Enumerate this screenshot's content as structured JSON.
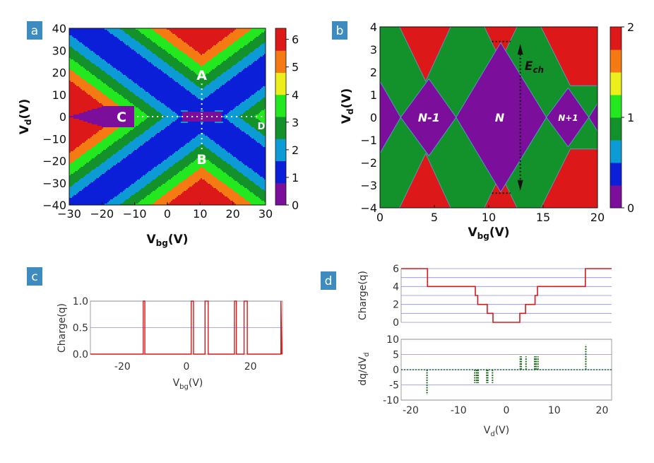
{
  "palette": [
    "#7b0f9c",
    "#0b1fd8",
    "#0d9bd6",
    "#13912a",
    "#23e81f",
    "#ecef1b",
    "#f57a14",
    "#dd1818"
  ],
  "panels": [
    {
      "id": "a",
      "badge": "a",
      "chart_data": {
        "type": "heatmap",
        "title": "",
        "xlabel": "V",
        "xlabel_sub": "bg",
        "xlabel_unit": "(V)",
        "ylabel": "V",
        "ylabel_sub": "d",
        "ylabel_unit": "(V)",
        "xlim": [
          -30,
          30
        ],
        "ylim": [
          -40,
          40
        ],
        "x_ticks": [
          "−30",
          "−20",
          "−10",
          "0",
          "10",
          "20",
          "30"
        ],
        "y_ticks": [
          "40",
          "30",
          "20",
          "10",
          "0",
          "−10",
          "−20",
          "−30",
          "−40"
        ],
        "colorbar": {
          "range": [
            0,
            6.4
          ],
          "ticks": [
            "0",
            "1",
            "2",
            "3",
            "4",
            "5",
            "6"
          ]
        },
        "levels": [
          0,
          1,
          2,
          3,
          4,
          5,
          6
        ],
        "points": {
          "A": {
            "label": "A",
            "x": 10.5,
            "y": 18
          },
          "B": {
            "label": "B",
            "x": 10.5,
            "y": -17
          },
          "C": {
            "label": "C",
            "x": -14,
            "y": 0
          },
          "D": {
            "label": "D",
            "x": 30,
            "y": 0
          }
        }
      }
    },
    {
      "id": "b",
      "badge": "b",
      "chart_data": {
        "type": "heatmap",
        "title": "",
        "xlabel": "V",
        "xlabel_sub": "bg",
        "xlabel_unit": "(V)",
        "ylabel": "V",
        "ylabel_sub": "d",
        "ylabel_unit": "(V)",
        "xlim": [
          0,
          20
        ],
        "ylim": [
          -4,
          4
        ],
        "x_ticks": [
          "0",
          "5",
          "10",
          "15",
          "20"
        ],
        "y_ticks": [
          "4",
          "3",
          "2",
          "1",
          "0",
          "−1",
          "−2",
          "−3",
          "−4"
        ],
        "colorbar": {
          "range": [
            0,
            2
          ],
          "ticks": [
            "0",
            "1",
            "2"
          ]
        },
        "degeneracy_points": [
          1.0,
          7.0,
          15.0
        ],
        "annotations": {
          "n_minus": "N-1",
          "n": "N",
          "n_plus": "N+1",
          "charging_energy": "E",
          "charging_energy_sub": "ch"
        }
      }
    },
    {
      "id": "c",
      "badge": "c",
      "chart_data": {
        "type": "line",
        "title": "",
        "xlabel": "V",
        "xlabel_sub": "bg",
        "xlabel_unit": "(V)",
        "ylabel": "Charge(q)",
        "xlim": [
          -30,
          30
        ],
        "ylim": [
          0,
          1
        ],
        "x_ticks": [
          "-20",
          "0",
          "20"
        ],
        "y_ticks": [
          "1.0",
          "0.5",
          "0.0"
        ],
        "pulses": [
          [
            -13.5,
            -13.0
          ],
          [
            1.5,
            2.2
          ],
          [
            5.8,
            6.8
          ],
          [
            15.0,
            15.6
          ],
          [
            18.0,
            19.0
          ]
        ],
        "edge_spike": 29.5
      }
    },
    {
      "id": "d",
      "badge": "d",
      "charge": {
        "type": "line",
        "ylabel": "Charge(q)",
        "ylim": [
          0,
          6
        ],
        "y_ticks": [
          "6",
          "4",
          "2",
          "0"
        ],
        "x": [
          -22,
          -16.5,
          -16.5,
          -6.5,
          -6.5,
          -6,
          -6,
          -4,
          -4,
          -2.8,
          -2.8,
          2.8,
          2.8,
          4,
          4,
          6,
          6,
          6.5,
          6.5,
          16.5,
          16.5,
          22
        ],
        "y": [
          6,
          6,
          4,
          4,
          3,
          3,
          2,
          2,
          1,
          1,
          0,
          0,
          1,
          1,
          2,
          2,
          3,
          3,
          4,
          4,
          6,
          6
        ]
      },
      "derivative": {
        "type": "line",
        "ylabel": "dq/dV",
        "ylabel_sub": "d",
        "ylim": [
          -10,
          10
        ],
        "y_ticks": [
          "10",
          "5",
          "0",
          "-5",
          "-10"
        ],
        "spikes": [
          {
            "x": -16.6,
            "h": -8.2
          },
          {
            "x": -6.6,
            "h": -4.4
          },
          {
            "x": -6.2,
            "h": -4.4
          },
          {
            "x": -5.9,
            "h": -4.4
          },
          {
            "x": -4.1,
            "h": -4.4
          },
          {
            "x": -3.9,
            "h": -4.4
          },
          {
            "x": -2.9,
            "h": -4.4
          },
          {
            "x": 2.9,
            "h": 4.4
          },
          {
            "x": 3.1,
            "h": 4.4
          },
          {
            "x": 4.1,
            "h": 4.4
          },
          {
            "x": 5.9,
            "h": 4.4
          },
          {
            "x": 6.2,
            "h": 4.4
          },
          {
            "x": 6.6,
            "h": 4.4
          },
          {
            "x": 16.6,
            "h": 8.2
          }
        ]
      },
      "xlabel": "V",
      "xlabel_sub": "d",
      "xlabel_unit": "(V)",
      "xlim": [
        -22,
        22
      ],
      "x_ticks": [
        "-20",
        "-10",
        "0",
        "10",
        "20"
      ]
    }
  ]
}
